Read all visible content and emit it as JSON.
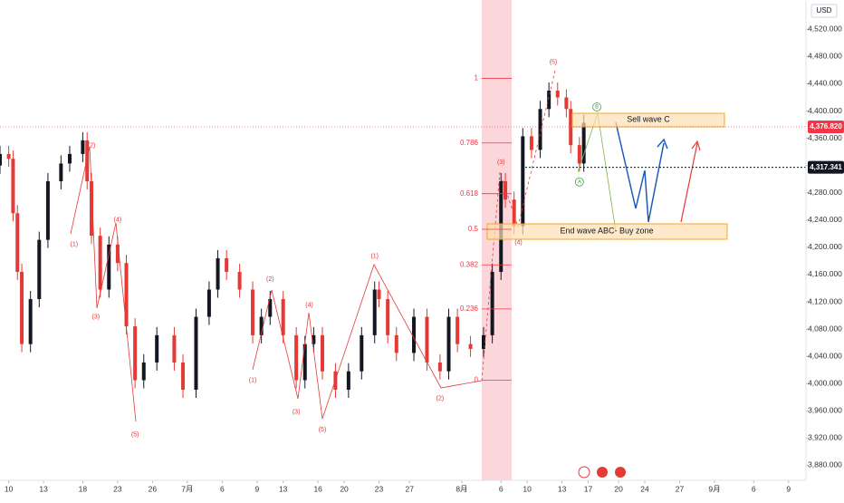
{
  "chart_data": {
    "type": "candlestick",
    "currency": "USD",
    "x": [
      0,
      2,
      3,
      4,
      5,
      7,
      9,
      11,
      14,
      16,
      19,
      20,
      21,
      23,
      25,
      27,
      29,
      31,
      33,
      36,
      40,
      42,
      45,
      48,
      50,
      52,
      55,
      58,
      60,
      62,
      65,
      68,
      70,
      72,
      74,
      77,
      80,
      83,
      86,
      87,
      89,
      91,
      95,
      98,
      101,
      103,
      105,
      108,
      111,
      113,
      115,
      116,
      118,
      120,
      122,
      124,
      126,
      128,
      130,
      131,
      133,
      134
    ],
    "open": [
      4320,
      4337,
      4330,
      4250,
      4164,
      4058,
      4124,
      4211,
      4297,
      4323,
      4337,
      4357,
      4297,
      4217,
      4138,
      4204,
      4177,
      4084,
      4005,
      4031,
      4071,
      4031,
      3991,
      4098,
      4138,
      4184,
      4164,
      4138,
      4071,
      4098,
      4124,
      4071,
      4005,
      4058,
      4071,
      4018,
      3991,
      4018,
      4071,
      4138,
      4124,
      4071,
      4045,
      4098,
      4031,
      4018,
      4098,
      4058,
      4051,
      4071,
      4164,
      4297,
      4270,
      4231,
      4363,
      4343,
      4403,
      4430,
      4420,
      4403,
      4350,
      4323
    ],
    "high": [
      4349,
      4349,
      4342,
      4262,
      4176,
      4136,
      4223,
      4309,
      4335,
      4349,
      4369,
      4369,
      4309,
      4229,
      4216,
      4216,
      4189,
      4096,
      4043,
      4083,
      4083,
      4043,
      4110,
      4150,
      4196,
      4196,
      4176,
      4150,
      4110,
      4136,
      4136,
      4083,
      4070,
      4083,
      4083,
      4030,
      4030,
      4083,
      4150,
      4150,
      4136,
      4083,
      4110,
      4110,
      4043,
      4110,
      4110,
      4070,
      4083,
      4176,
      4309,
      4309,
      4282,
      4375,
      4375,
      4415,
      4442,
      4442,
      4432,
      4415,
      4362,
      4395
    ],
    "low": [
      4308,
      4318,
      4238,
      4152,
      4046,
      4046,
      4112,
      4199,
      4285,
      4311,
      4325,
      4285,
      4205,
      4126,
      4126,
      4165,
      4072,
      3993,
      3993,
      4019,
      4019,
      3979,
      3979,
      4086,
      4126,
      4152,
      4126,
      4059,
      4059,
      4086,
      4059,
      3993,
      3993,
      4046,
      4006,
      3979,
      3979,
      4006,
      4059,
      4112,
      4059,
      4033,
      4033,
      4019,
      4006,
      4006,
      4046,
      4039,
      4039,
      4059,
      4152,
      4258,
      4219,
      4219,
      4331,
      4331,
      4391,
      4408,
      4391,
      4338,
      4311,
      4311
    ],
    "close": [
      4337,
      4330,
      4250,
      4164,
      4058,
      4124,
      4211,
      4297,
      4323,
      4337,
      4357,
      4297,
      4217,
      4138,
      4204,
      4177,
      4084,
      4005,
      4031,
      4071,
      4031,
      3991,
      4098,
      4138,
      4184,
      4164,
      4138,
      4071,
      4098,
      4124,
      4071,
      4005,
      4058,
      4071,
      4018,
      3991,
      4018,
      4071,
      4138,
      4124,
      4071,
      4045,
      4098,
      4031,
      4018,
      4098,
      4058,
      4051,
      4071,
      4164,
      4297,
      4270,
      4231,
      4363,
      4343,
      4403,
      4430,
      4420,
      4403,
      4350,
      4323,
      4383
    ],
    "up_color": "#131722",
    "down_color": "#e53935",
    "xlim": [
      0,
      185
    ],
    "ylim": [
      3858,
      4563
    ],
    "xticks": [
      {
        "value": 2,
        "label": "10"
      },
      {
        "value": 10,
        "label": "13"
      },
      {
        "value": 19,
        "label": "18"
      },
      {
        "value": 27,
        "label": "23"
      },
      {
        "value": 35,
        "label": "26"
      },
      {
        "value": 43,
        "label": "7月"
      },
      {
        "value": 51,
        "label": "6"
      },
      {
        "value": 59,
        "label": "9"
      },
      {
        "value": 65,
        "label": "13"
      },
      {
        "value": 73,
        "label": "16"
      },
      {
        "value": 79,
        "label": "20"
      },
      {
        "value": 87,
        "label": "23"
      },
      {
        "value": 94,
        "label": "27"
      },
      {
        "value": 106,
        "label": "8月"
      },
      {
        "value": 115,
        "label": "6"
      },
      {
        "value": 121,
        "label": "10"
      },
      {
        "value": 129,
        "label": "13"
      },
      {
        "value": 135,
        "label": "17"
      },
      {
        "value": 142,
        "label": "20"
      },
      {
        "value": 148,
        "label": "24"
      },
      {
        "value": 156,
        "label": "27"
      },
      {
        "value": 164,
        "label": "9月"
      },
      {
        "value": 173,
        "label": "6"
      },
      {
        "value": 181,
        "label": "9"
      }
    ],
    "yticks": [
      {
        "value": 4520,
        "label": "4,520.000"
      },
      {
        "value": 4480,
        "label": "4,480.000"
      },
      {
        "value": 4440,
        "label": "4,440.000"
      },
      {
        "value": 4400,
        "label": "4,400.000"
      },
      {
        "value": 4360,
        "label": "4,360.000"
      },
      {
        "value": 4320,
        "label": "4,320.000"
      },
      {
        "value": 4280,
        "label": "4,280.000"
      },
      {
        "value": 4240,
        "label": "4,240.000"
      },
      {
        "value": 4200,
        "label": "4,200.000"
      },
      {
        "value": 4160,
        "label": "4,160.000"
      },
      {
        "value": 4120,
        "label": "4,120.000"
      },
      {
        "value": 4080,
        "label": "4,080.000"
      },
      {
        "value": 4040,
        "label": "4,040.000"
      },
      {
        "value": 4000,
        "label": "4,000.000"
      },
      {
        "value": 3960,
        "label": "3,960.000"
      },
      {
        "value": 3920,
        "label": "3,920.000"
      },
      {
        "value": 3880,
        "label": "3,880.000"
      }
    ],
    "price_tags": [
      {
        "value": 4376.82,
        "label": "4,376.820",
        "color": "#f23645"
      },
      {
        "value": 4317.341,
        "label": "4,317.341",
        "color": "#131722"
      }
    ],
    "fib": {
      "low": 4005,
      "high": 4448,
      "color": "#f23645",
      "levels": [
        1,
        0.786,
        0.618,
        0.5,
        0.382,
        0.236,
        0
      ]
    },
    "zones": {
      "sell": "Sell wave C",
      "buy": "End wave ABC- Buy zone"
    },
    "annotations": [
      {
        "text": "(2)",
        "x": 21,
        "y": 4349,
        "color": "#e53935"
      },
      {
        "text": "(1)",
        "x": 17,
        "y": 4204,
        "color": "#e53935"
      },
      {
        "text": "(4)",
        "x": 27,
        "y": 4240,
        "color": "#e53935"
      },
      {
        "text": "(3)",
        "x": 22,
        "y": 4098,
        "color": "#e53935"
      },
      {
        "text": "(5)",
        "x": 31,
        "y": 3925,
        "color": "#e53935"
      },
      {
        "text": "(1)",
        "x": 58,
        "y": 4005,
        "color": "#e53935"
      },
      {
        "text": "(2)",
        "x": 62,
        "y": 4153,
        "color": "#e53935"
      },
      {
        "text": "(3)",
        "x": 68,
        "y": 3958,
        "color": "#e53935"
      },
      {
        "text": "(4)",
        "x": 71,
        "y": 4115,
        "color": "#e53935"
      },
      {
        "text": "(5)",
        "x": 74,
        "y": 3932,
        "color": "#e53935"
      },
      {
        "text": "(1)",
        "x": 86,
        "y": 4187,
        "color": "#e53935"
      },
      {
        "text": "(2)",
        "x": 101,
        "y": 3978,
        "color": "#e53935"
      },
      {
        "text": "(3)",
        "x": 115,
        "y": 4325,
        "color": "#e53935"
      },
      {
        "text": "(4)",
        "x": 119,
        "y": 4207,
        "color": "#e53935"
      },
      {
        "text": "(5)",
        "x": 127,
        "y": 4472,
        "color": "#e53935"
      },
      {
        "text": "A",
        "x": 133,
        "y": 4296,
        "color": "#43a047"
      },
      {
        "text": "B",
        "x": 137,
        "y": 4406,
        "color": "#43a047"
      }
    ]
  }
}
